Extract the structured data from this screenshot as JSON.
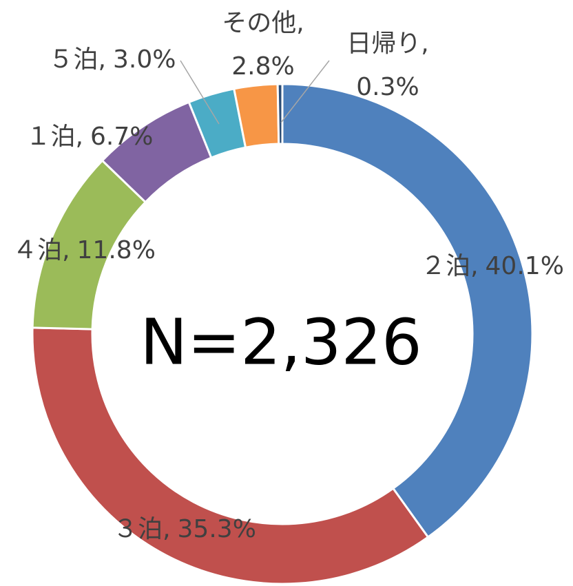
{
  "chart_data": {
    "type": "donut",
    "center_label": "N=2,326",
    "categories": [
      "２泊,",
      "３泊,",
      "４泊,",
      "１泊,",
      "５泊,",
      "その他,",
      "日帰り,"
    ],
    "values": [
      40.1,
      35.3,
      11.8,
      6.7,
      3.0,
      2.8,
      0.3
    ],
    "value_labels": [
      "40.1%",
      "35.3%",
      "11.8%",
      "6.7%",
      "3.0%",
      "2.8%",
      "0.3%"
    ],
    "colors": [
      "#4f81bd",
      "#c0504d",
      "#9bbb59",
      "#8064a2",
      "#4bacc6",
      "#f79646",
      "#2c4d75"
    ]
  }
}
